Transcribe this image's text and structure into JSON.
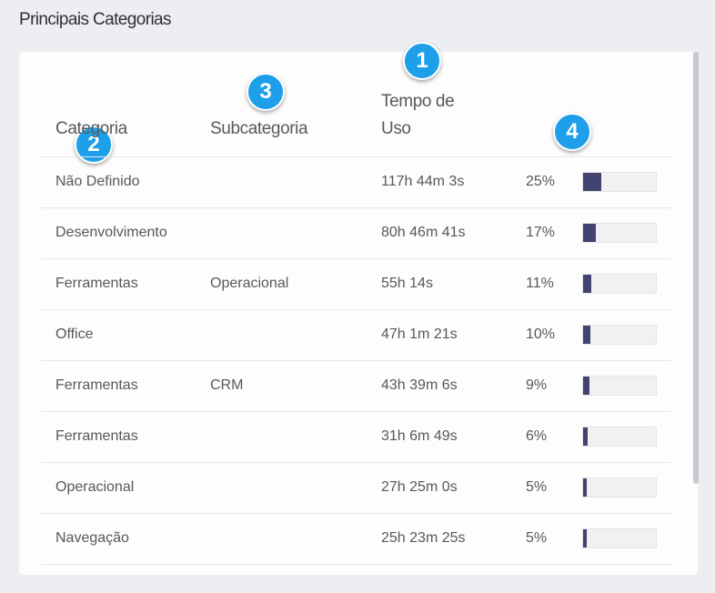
{
  "page": {
    "title": "Principais Categorias"
  },
  "table": {
    "columns": [
      {
        "label": "Categoria",
        "badge": "2"
      },
      {
        "label": "Subcategoria",
        "badge": "3"
      },
      {
        "label": "Tempo de Uso",
        "line1": "Tempo de",
        "line2": "Uso",
        "badge": "1"
      },
      {
        "label": "",
        "badge": "4"
      }
    ],
    "rows": [
      {
        "categoria": "Não Definido",
        "subcategoria": "",
        "tempo": "117h 44m 3s",
        "percent": "25%",
        "share": 0.25
      },
      {
        "categoria": "Desenvolvimento",
        "subcategoria": "",
        "tempo": "80h 46m 41s",
        "percent": "17%",
        "share": 0.17
      },
      {
        "categoria": "Ferramentas",
        "subcategoria": "Operacional",
        "tempo": "55h 14s",
        "percent": "11%",
        "share": 0.11
      },
      {
        "categoria": "Office",
        "subcategoria": "",
        "tempo": "47h 1m 21s",
        "percent": "10%",
        "share": 0.1
      },
      {
        "categoria": "Ferramentas",
        "subcategoria": "CRM",
        "tempo": "43h 39m 6s",
        "percent": "9%",
        "share": 0.09
      },
      {
        "categoria": "Ferramentas",
        "subcategoria": "",
        "tempo": "31h 6m 49s",
        "percent": "6%",
        "share": 0.06
      },
      {
        "categoria": "Operacional",
        "subcategoria": "",
        "tempo": "27h 25m 0s",
        "percent": "5%",
        "share": 0.05
      },
      {
        "categoria": "Navegação",
        "subcategoria": "",
        "tempo": "25h 23m 25s",
        "percent": "5%",
        "share": 0.05
      }
    ]
  },
  "colors": {
    "bar": "#434372",
    "badge": "#1d9fe9"
  }
}
